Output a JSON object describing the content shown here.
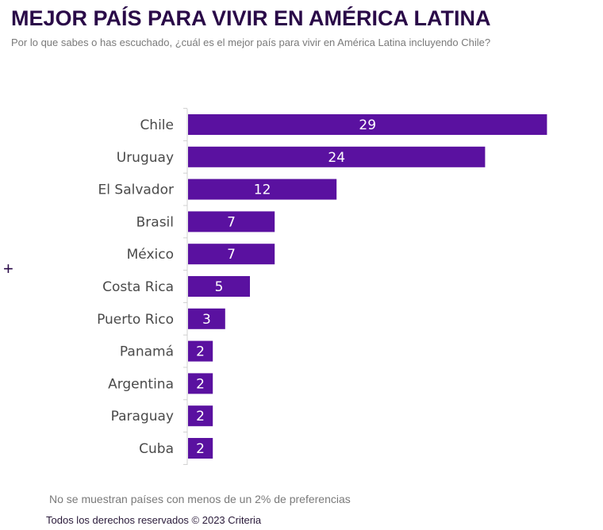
{
  "chart_data": {
    "type": "bar",
    "orientation": "horizontal",
    "title": "MEJOR PAÍS PARA VIVIR EN AMÉRICA LATINA",
    "subtitle": "Por lo que sabes o has escuchado, ¿cuál es el mejor país para vivir en América Latina incluyendo Chile?",
    "categories": [
      "Chile",
      "Uruguay",
      "El Salvador",
      "Brasil",
      "México",
      "Costa Rica",
      "Puerto Rico",
      "Panamá",
      "Argentina",
      "Paraguay",
      "Cuba"
    ],
    "values": [
      29,
      24,
      12,
      7,
      7,
      5,
      3,
      2,
      2,
      2,
      2
    ],
    "xlim": [
      0,
      30
    ],
    "grid": false,
    "data_labels": true,
    "bar_color": "#5a11a0",
    "label_color": "#4a4a4a"
  },
  "note": "No se muestran países con menos de un 2% de preferencias",
  "copyright": "Todos los derechos reservados © 2023 Criteria",
  "decor": {
    "plus": "+"
  }
}
